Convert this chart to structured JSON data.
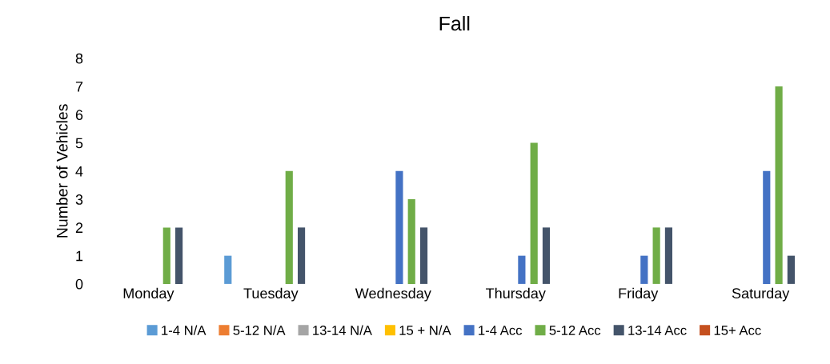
{
  "chart_data": {
    "type": "bar",
    "title": "Fall",
    "ylabel": "Number of Vehicles",
    "categories": [
      "Monday",
      "Tuesday",
      "Wednesday",
      "Thursday",
      "Friday",
      "Saturday"
    ],
    "series": [
      {
        "name": "1-4 N/A",
        "color": "#5b9bd5",
        "values": [
          0,
          1,
          0,
          0,
          0,
          0
        ]
      },
      {
        "name": "5-12 N/A",
        "color": "#ed7d31",
        "values": [
          0,
          0,
          0,
          0,
          0,
          0
        ]
      },
      {
        "name": "13-14 N/A",
        "color": "#a5a5a5",
        "values": [
          0,
          0,
          0,
          0,
          0,
          0
        ]
      },
      {
        "name": "15 + N/A",
        "color": "#ffc000",
        "values": [
          0,
          0,
          0,
          0,
          0,
          0
        ]
      },
      {
        "name": "1-4 Acc",
        "color": "#4472c4",
        "values": [
          0,
          0,
          4,
          1,
          1,
          4
        ]
      },
      {
        "name": "5-12 Acc",
        "color": "#70ad47",
        "values": [
          2,
          4,
          3,
          5,
          2,
          7
        ]
      },
      {
        "name": "13-14 Acc",
        "color": "#44546a",
        "values": [
          2,
          2,
          2,
          2,
          2,
          1
        ]
      },
      {
        "name": "15+ Acc",
        "color": "#c5501f",
        "values": [
          0,
          0,
          0,
          0,
          0,
          0
        ]
      }
    ],
    "ylim": [
      0,
      8
    ],
    "yticks": [
      0,
      1,
      2,
      3,
      4,
      5,
      6,
      7,
      8
    ],
    "grid": false,
    "legend": "bottom"
  }
}
